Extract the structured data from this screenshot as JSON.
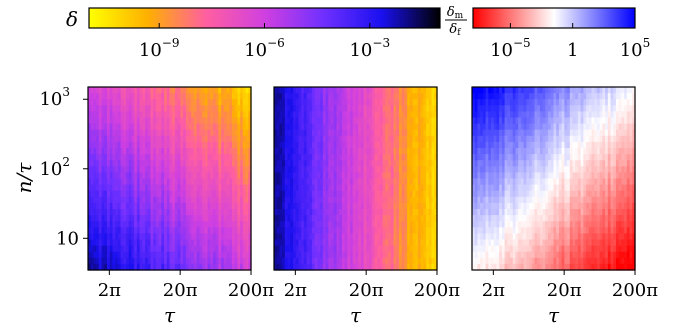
{
  "chart_data": [
    {
      "type": "heatmap",
      "title": "",
      "xlabel": "τ",
      "ylabel": "n/τ",
      "x_scale": "log",
      "y_scale": "log",
      "xlim": [
        3.14,
        628.3
      ],
      "ylim": [
        3.5,
        1500
      ],
      "x_ticks": [
        {
          "value": 6.283,
          "label": "2π"
        },
        {
          "value": 62.83,
          "label": "20π"
        },
        {
          "value": 628.3,
          "label": "200π"
        }
      ],
      "y_ticks": [
        {
          "value": 10,
          "label": "10",
          "exp": ""
        },
        {
          "value": 100,
          "label": "10",
          "exp": "2"
        },
        {
          "value": 1000,
          "label": "10",
          "exp": "3"
        }
      ],
      "colorbar": "delta",
      "trend": "δ increases with τ and with n/τ; smallest values at small τ and small n/τ"
    },
    {
      "type": "heatmap",
      "title": "",
      "xlabel": "τ",
      "x_scale": "log",
      "y_scale": "log",
      "xlim": [
        3.14,
        628.3
      ],
      "ylim": [
        3.5,
        1500
      ],
      "x_ticks": [
        {
          "value": 6.283,
          "label": "2π"
        },
        {
          "value": 62.83,
          "label": "20π"
        },
        {
          "value": 628.3,
          "label": "200π"
        }
      ],
      "colorbar": "delta",
      "trend": "δ increases with τ, nearly independent of n/τ"
    },
    {
      "type": "heatmap",
      "title": "",
      "xlabel": "τ",
      "x_scale": "log",
      "y_scale": "log",
      "xlim": [
        3.14,
        628.3
      ],
      "ylim": [
        3.5,
        1500
      ],
      "x_ticks": [
        {
          "value": 6.283,
          "label": "2π"
        },
        {
          "value": 62.83,
          "label": "20π"
        },
        {
          "value": 628.3,
          "label": "200π"
        }
      ],
      "colorbar": "ratio",
      "trend": "ratio > 1 (blue) at small τ and large n/τ; ratio < 1 (red) at large τ and small n/τ"
    }
  ],
  "colorbars": {
    "delta": {
      "label": "δ",
      "scale": "log",
      "range": [
        1e-11,
        0.1
      ],
      "ticks": [
        {
          "value": 1e-09,
          "label": "10",
          "exp": "−9"
        },
        {
          "value": 1e-06,
          "label": "10",
          "exp": "−6"
        },
        {
          "value": 0.001,
          "label": "10",
          "exp": "−3"
        }
      ],
      "colors": [
        "#ffff00",
        "#ffb000",
        "#ff5fa0",
        "#d040e0",
        "#7030ff",
        "#1a10f0",
        "#000000"
      ]
    },
    "ratio": {
      "label_num": "δ",
      "label_num_sub": "m",
      "label_den": "δ",
      "label_den_sub": "f",
      "scale": "log",
      "range": [
        1e-08,
        100000.0
      ],
      "ticks": [
        {
          "value": 1e-05,
          "label": "10",
          "exp": "−5"
        },
        {
          "value": 1,
          "label": "1",
          "exp": ""
        },
        {
          "value": 100000.0,
          "label": "10",
          "exp": "5"
        }
      ],
      "colors": [
        "#ff0000",
        "#ffffff",
        "#0000ff"
      ]
    }
  }
}
